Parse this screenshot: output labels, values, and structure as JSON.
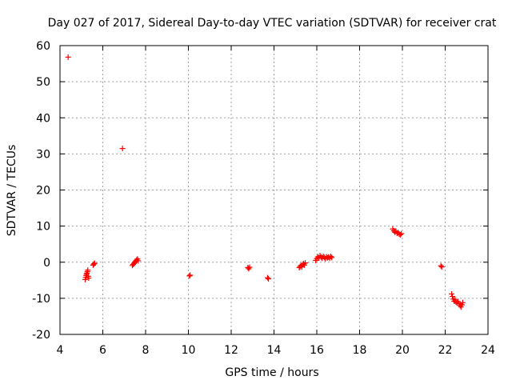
{
  "chart_data": {
    "type": "scatter",
    "title": "Day 027 of 2017, Sidereal Day-to-day VTEC variation (SDTVAR) for receiver crat",
    "xlabel": "GPS time / hours",
    "ylabel": "SDTVAR / TECUs",
    "xlim": [
      4,
      24
    ],
    "ylim": [
      -20,
      60
    ],
    "x_ticks": [
      4,
      6,
      8,
      10,
      12,
      14,
      16,
      18,
      20,
      22,
      24
    ],
    "x_tick_labels": [
      "4",
      "6",
      "8",
      "10",
      "12",
      "14",
      "16",
      "18",
      "20",
      "22",
      "24"
    ],
    "y_ticks": [
      -20,
      -10,
      0,
      10,
      20,
      30,
      40,
      50,
      60
    ],
    "y_tick_labels": [
      "-20",
      "-10",
      "0",
      "10",
      "20",
      "30",
      "40",
      "50",
      "60"
    ],
    "grid": true,
    "marker": "+",
    "color": "#ff0000",
    "series": [
      {
        "name": "SDTVAR",
        "points": [
          [
            4.38,
            56.8
          ],
          [
            5.18,
            -4.8
          ],
          [
            5.2,
            -4.2
          ],
          [
            5.22,
            -3.7
          ],
          [
            5.24,
            -3.3
          ],
          [
            5.26,
            -3.0
          ],
          [
            5.28,
            -2.6
          ],
          [
            5.3,
            -2.2
          ],
          [
            5.32,
            -3.9
          ],
          [
            5.34,
            -4.4
          ],
          [
            5.55,
            -0.8
          ],
          [
            5.58,
            -0.5
          ],
          [
            5.62,
            -0.3
          ],
          [
            6.92,
            31.5
          ],
          [
            7.38,
            -0.9
          ],
          [
            7.42,
            -0.6
          ],
          [
            7.46,
            -0.3
          ],
          [
            7.5,
            0.0
          ],
          [
            7.54,
            0.3
          ],
          [
            7.58,
            0.6
          ],
          [
            7.62,
            0.9
          ],
          [
            7.66,
            0.4
          ],
          [
            10.05,
            -3.8
          ],
          [
            10.08,
            -3.6
          ],
          [
            12.78,
            -1.5
          ],
          [
            12.82,
            -1.8
          ],
          [
            12.86,
            -1.4
          ],
          [
            13.7,
            -4.3
          ],
          [
            13.74,
            -4.6
          ],
          [
            15.18,
            -1.5
          ],
          [
            15.22,
            -1.2
          ],
          [
            15.26,
            -0.9
          ],
          [
            15.3,
            -1.3
          ],
          [
            15.34,
            -0.7
          ],
          [
            15.38,
            -0.4
          ],
          [
            15.42,
            -0.8
          ],
          [
            15.46,
            -0.2
          ],
          [
            15.95,
            0.5
          ],
          [
            16.0,
            1.0
          ],
          [
            16.05,
            1.5
          ],
          [
            16.1,
            1.2
          ],
          [
            16.15,
            1.8
          ],
          [
            16.2,
            1.4
          ],
          [
            16.25,
            1.1
          ],
          [
            16.3,
            1.6
          ],
          [
            16.35,
            1.3
          ],
          [
            16.4,
            1.0
          ],
          [
            16.45,
            1.5
          ],
          [
            16.5,
            1.2
          ],
          [
            16.55,
            1.4
          ],
          [
            16.6,
            1.1
          ],
          [
            16.65,
            1.6
          ],
          [
            16.7,
            1.3
          ],
          [
            19.55,
            9.2
          ],
          [
            19.6,
            8.7
          ],
          [
            19.65,
            8.3
          ],
          [
            19.7,
            8.6
          ],
          [
            19.75,
            8.0
          ],
          [
            19.8,
            8.2
          ],
          [
            19.85,
            7.8
          ],
          [
            19.9,
            7.6
          ],
          [
            19.95,
            7.9
          ],
          [
            21.8,
            -1.0
          ],
          [
            21.84,
            -1.3
          ],
          [
            22.3,
            -8.8
          ],
          [
            22.34,
            -9.5
          ],
          [
            22.38,
            -10.2
          ],
          [
            22.42,
            -10.8
          ],
          [
            22.46,
            -10.4
          ],
          [
            22.5,
            -11.0
          ],
          [
            22.55,
            -11.3
          ],
          [
            22.6,
            -10.9
          ],
          [
            22.65,
            -11.5
          ],
          [
            22.7,
            -12.0
          ],
          [
            22.74,
            -12.4
          ],
          [
            22.78,
            -11.8
          ],
          [
            22.82,
            -11.2
          ]
        ]
      }
    ]
  }
}
